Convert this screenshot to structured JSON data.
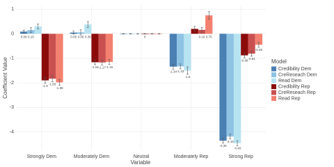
{
  "chart_data": {
    "type": "bar",
    "categories": [
      "Strongly Dem",
      "Moderately Dem",
      "Neutral",
      "Moderately Rep",
      "Strong Rep"
    ],
    "x_label": "Variable",
    "y_label": "Coefficient Value",
    "legend_title": "Model",
    "ylim": [
      -4.75,
      1.15
    ],
    "yticks": [
      -4,
      -3,
      -2,
      -1,
      0,
      1
    ],
    "grid": true,
    "legend_position": "right",
    "series": [
      {
        "name": "Credibility Dem",
        "color": "#4a80b4",
        "values": [
          0.09,
          0.05,
          0,
          -1.34,
          -4.36
        ],
        "errors": [
          0.06,
          0.06,
          0.01,
          0.1,
          0.1
        ],
        "value_labels": [
          "0.09",
          "0.05",
          null,
          "-1.34",
          "-4.36"
        ]
      },
      {
        "name": "CreReseach Dem",
        "color": "#8ec3e3",
        "values": [
          0.15,
          0.06,
          0,
          -1.33,
          -4.19
        ],
        "errors": [
          0.1,
          0.1,
          0.01,
          0.1,
          0.1
        ],
        "value_labels": [
          "0.15",
          "0.06",
          null,
          "-1.33",
          "-4.19"
        ]
      },
      {
        "name": "Read Dem",
        "color": "#b8e4f1",
        "values": [
          0.3,
          0.38,
          0,
          -1.5,
          -4.46
        ],
        "errors": [
          0.1,
          0.12,
          0.01,
          0.15,
          0.1
        ],
        "value_labels": [
          null,
          "0.38",
          null,
          "-1.5",
          "-4.46"
        ]
      },
      {
        "name": "Credibility Rep",
        "color": "#8b0b0b",
        "values": [
          -1.9,
          -1.16,
          0,
          0.2,
          -0.88
        ],
        "errors": [
          0.12,
          0.1,
          0.01,
          0.1,
          0.1
        ],
        "value_labels": [
          "-1.9",
          "-1.16",
          "0",
          null,
          "-0.88"
        ]
      },
      {
        "name": "CreReseach Rep",
        "color": "#c95050",
        "values": [
          -1.83,
          -1.17,
          0,
          0.16,
          -0.81
        ],
        "errors": [
          0.12,
          0.1,
          0.01,
          0.1,
          0.1
        ],
        "value_labels": [
          "-1.83",
          "-1.17",
          null,
          "0.16",
          "-0.81"
        ]
      },
      {
        "name": "Read Rep",
        "color": "#f4806f",
        "values": [
          -1.98,
          -1.15,
          0,
          0.75,
          -0.45
        ],
        "errors": [
          0.12,
          0.1,
          0.01,
          0.15,
          0.1
        ],
        "value_labels": [
          "-1.98",
          "-1.15",
          null,
          "0.75",
          "-0.45"
        ]
      }
    ]
  }
}
